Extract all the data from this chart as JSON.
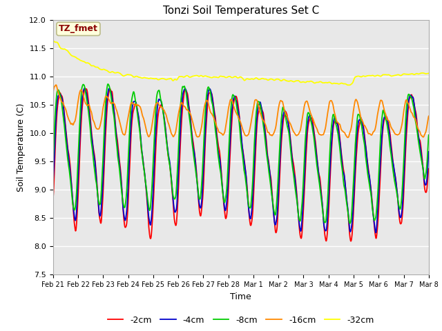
{
  "title": "Tonzi Soil Temperatures Set C",
  "xlabel": "Time",
  "ylabel": "Soil Temperature (C)",
  "ylim": [
    7.5,
    12.0
  ],
  "legend_labels": [
    "-2cm",
    "-4cm",
    "-8cm",
    "-16cm",
    "-32cm"
  ],
  "line_colors": [
    "#ff0000",
    "#0000cc",
    "#00cc00",
    "#ff8800",
    "#ffff00"
  ],
  "annotation_text": "TZ_fmet",
  "annotation_color": "#8b0000",
  "annotation_bg": "#ffffdd",
  "plot_bg": "#e8e8e8",
  "xtick_labels": [
    "Feb 21",
    "Feb 22",
    "Feb 23",
    "Feb 24",
    "Feb 25",
    "Feb 26",
    "Feb 27",
    "Feb 28",
    "Mar 1",
    "Mar 2",
    "Mar 3",
    "Mar 4",
    "Mar 5",
    "Mar 6",
    "Mar 7",
    "Mar 8"
  ]
}
